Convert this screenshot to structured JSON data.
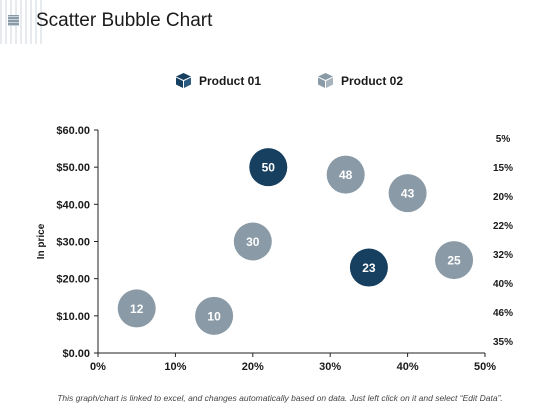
{
  "page": {
    "title": "Scatter Bubble Chart",
    "footnote": "This graph/chart is linked to excel, and changes automatically based on data. Just left click on it and select “Edit Data”."
  },
  "colors": {
    "product01": "#173f5f",
    "product02": "#8a9aa6",
    "bubble_text": "#ffffff"
  },
  "chart_data": {
    "type": "scatter",
    "title": "Scatter Bubble Chart",
    "xlabel": "",
    "ylabel": "In price",
    "xlim": [
      0,
      0.5
    ],
    "ylim": [
      0,
      60
    ],
    "x_ticks": [
      "0%",
      "10%",
      "20%",
      "30%",
      "40%",
      "50%"
    ],
    "y_ticks": [
      "$0.00",
      "$10.00",
      "$20.00",
      "$30.00",
      "$40.00",
      "$50.00",
      "$60.00"
    ],
    "right_labels": [
      "5%",
      "15%",
      "20%",
      "22%",
      "32%",
      "40%",
      "46%",
      "35%"
    ],
    "grid": false,
    "legend_position": "top",
    "series": [
      {
        "name": "Product 01",
        "icon": "box-icon",
        "points": [
          {
            "x": 0.22,
            "y": 50,
            "label": "50"
          },
          {
            "x": 0.35,
            "y": 23,
            "label": "23"
          }
        ]
      },
      {
        "name": "Product 02",
        "icon": "box-icon",
        "points": [
          {
            "x": 0.05,
            "y": 12,
            "label": "12"
          },
          {
            "x": 0.15,
            "y": 10,
            "label": "10"
          },
          {
            "x": 0.2,
            "y": 30,
            "label": "30"
          },
          {
            "x": 0.32,
            "y": 48,
            "label": "48"
          },
          {
            "x": 0.4,
            "y": 43,
            "label": "43"
          },
          {
            "x": 0.46,
            "y": 25,
            "label": "25"
          }
        ]
      }
    ]
  }
}
